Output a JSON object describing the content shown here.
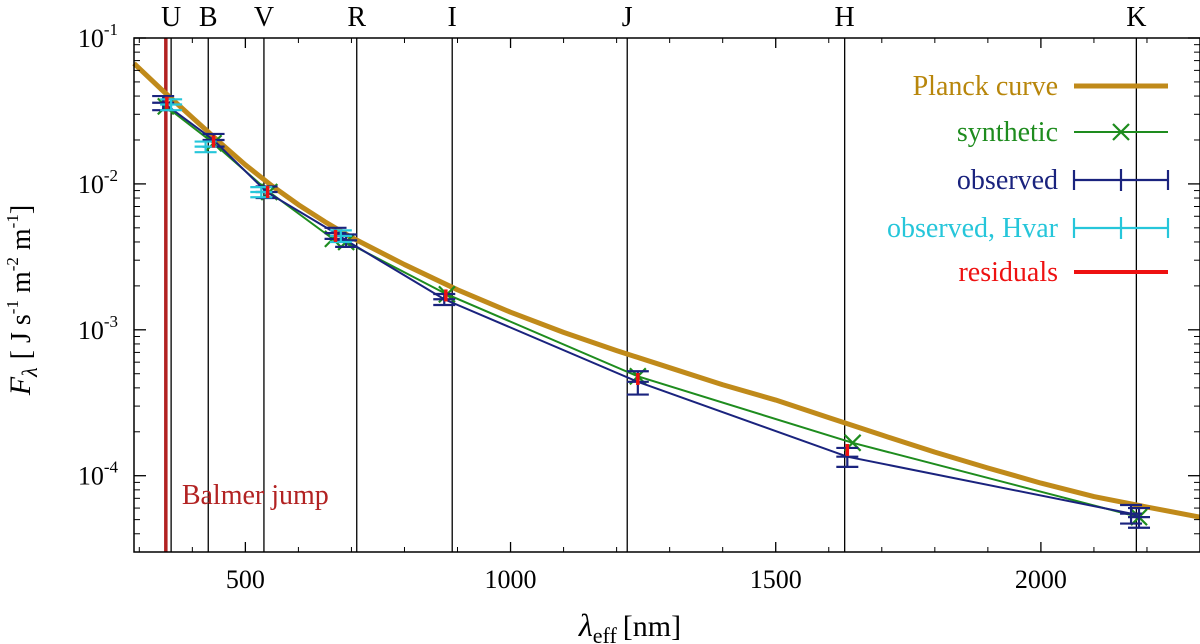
{
  "chart_data": {
    "type": "line",
    "title": "",
    "xlabel": "λ_eff [nm]",
    "xlabel_main": "λ",
    "xlabel_sub": "eff",
    "xlabel_unit": "[nm]",
    "ylabel": "F_λ [ J s⁻¹ m⁻² m⁻¹]",
    "ylabel_main": "F",
    "ylabel_sub": "λ",
    "ylabel_unit_parts": [
      "[ J s",
      "-1",
      " m",
      "-2",
      " m",
      "-1",
      "]"
    ],
    "xlim": [
      290,
      2300
    ],
    "ylim": [
      3e-05,
      0.1
    ],
    "yscale": "log",
    "xticks": [
      500,
      1000,
      1500,
      2000
    ],
    "xtick_labels": [
      "500",
      "1000",
      "1500",
      "2000"
    ],
    "yticks": [
      {
        "value": 0.1,
        "base": "10",
        "exp": "-1"
      },
      {
        "value": 0.01,
        "base": "10",
        "exp": "-2"
      },
      {
        "value": 0.001,
        "base": "10",
        "exp": "-3"
      },
      {
        "value": 0.0001,
        "base": "10",
        "exp": "-4"
      }
    ],
    "bands": [
      {
        "name": "U",
        "x": 360
      },
      {
        "name": "B",
        "x": 430
      },
      {
        "name": "V",
        "x": 535
      },
      {
        "name": "R",
        "x": 710
      },
      {
        "name": "I",
        "x": 890
      },
      {
        "name": "J",
        "x": 1220
      },
      {
        "name": "H",
        "x": 1630
      },
      {
        "name": "K",
        "x": 2180
      }
    ],
    "balmer": {
      "x": 350,
      "label": "Balmer jump",
      "color": "#b22222"
    },
    "series": [
      {
        "name": "Planck curve",
        "style": "thick-line",
        "color": "#c08a1a",
        "x": [
          290,
          340,
          400,
          450,
          500,
          550,
          600,
          650,
          700,
          800,
          900,
          1000,
          1100,
          1200,
          1300,
          1400,
          1500,
          1600,
          1700,
          1800,
          1900,
          2000,
          2100,
          2200,
          2300
        ],
        "y": [
          0.067,
          0.045,
          0.0285,
          0.0195,
          0.0135,
          0.0097,
          0.0072,
          0.0055,
          0.0043,
          0.0028,
          0.00188,
          0.00132,
          0.00096,
          0.00072,
          0.00055,
          0.00042,
          0.00033,
          0.00025,
          0.00019,
          0.000145,
          0.000113,
          8.9e-05,
          7.2e-05,
          6.1e-05,
          5.2e-05
        ]
      },
      {
        "name": "synthetic",
        "style": "line-cross",
        "color": "#1e8c1e",
        "x": [
          350,
          440,
          545,
          665,
          690,
          880,
          1240,
          1645,
          2185
        ],
        "y": [
          0.034,
          0.019,
          0.0088,
          0.0042,
          0.004,
          0.00175,
          0.00048,
          0.000168,
          5.2e-05
        ]
      },
      {
        "name": "observed",
        "style": "line-errorbar",
        "color": "#1a237e",
        "x": [
          345,
          440,
          540,
          670,
          690,
          875,
          1240,
          1635,
          2170,
          2185
        ],
        "y": [
          0.036,
          0.02,
          0.0088,
          0.0046,
          0.0041,
          0.00162,
          0.00044,
          0.000135,
          5.5e-05,
          5.2e-05
        ],
        "yerr": [
          0.004,
          0.002,
          0.0008,
          0.0004,
          0.0004,
          0.00014,
          8e-05,
          2e-05,
          8e-06,
          8e-06
        ]
      },
      {
        "name": "observed, Hvar",
        "style": "errorbar",
        "color": "#26c6da",
        "x": [
          360,
          425,
          530,
          680
        ],
        "y": [
          0.035,
          0.018,
          0.0088,
          0.0044
        ],
        "yerr": [
          0.003,
          0.0015,
          0.0007,
          0.0004
        ]
      },
      {
        "name": "residuals",
        "style": "short-line",
        "color": "#ee1111",
        "x": [
          352,
          440,
          542,
          670,
          878,
          1240,
          1635
        ],
        "y": [
          0.036,
          0.0195,
          0.0088,
          0.0044,
          0.00172,
          0.00046,
          0.00015
        ]
      }
    ],
    "legend": {
      "position": "top-right",
      "entries": [
        {
          "label": "Planck curve",
          "color": "#b8860b"
        },
        {
          "label": "synthetic",
          "color": "#1e8c1e"
        },
        {
          "label": "observed",
          "color": "#1a237e"
        },
        {
          "label": "observed, Hvar",
          "color": "#26c6da"
        },
        {
          "label": "residuals",
          "color": "#ee1111"
        }
      ]
    }
  }
}
